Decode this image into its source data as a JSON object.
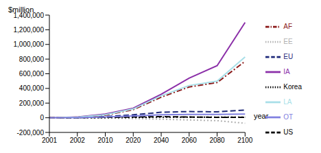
{
  "chart_data": {
    "type": "line",
    "x_label": "year",
    "y_label": "$million",
    "categories": [
      "2001",
      "2002",
      "2010",
      "2020",
      "2040",
      "2060",
      "2080",
      "2100"
    ],
    "ylim": [
      -200000,
      1400000
    ],
    "yticks": [
      {
        "value": -200000,
        "label": "-200,000"
      },
      0,
      {
        "value": 200000,
        "label": "200,000"
      },
      {
        "value": 400000,
        "label": "400,000"
      },
      {
        "value": 600000,
        "label": "600,000"
      },
      {
        "value": 800000,
        "label": "800,000"
      },
      {
        "value": 1000000,
        "label": "1,000,000"
      },
      {
        "value": 1200000,
        "label": "1,200,000"
      },
      {
        "value": 1400000,
        "label": "1,400,000"
      }
    ],
    "grid": false,
    "legend": "right",
    "series": [
      {
        "name": "EU",
        "color": "#1f2a7a",
        "line_style": "dashed",
        "values": [
          0,
          2000,
          15000,
          40000,
          75000,
          85000,
          80000,
          105000
        ]
      },
      {
        "name": "EE",
        "color": "#b0b0b0",
        "line_style": "dotted",
        "values": [
          0,
          0,
          -5000,
          -10000,
          -20000,
          -30000,
          -40000,
          -75000
        ]
      },
      {
        "name": "US",
        "color": "#000000",
        "line_style": "dashed",
        "values": [
          0,
          1000,
          5000,
          10000,
          15000,
          10000,
          5000,
          5000
        ]
      },
      {
        "name": "Korea",
        "color": "#000000",
        "line_style": "dotted",
        "values": [
          0,
          500,
          2000,
          5000,
          8000,
          8000,
          7000,
          8000
        ]
      },
      {
        "name": "IA",
        "color": "#8b2fa8",
        "line_style": "solid",
        "values": [
          0,
          10000,
          50000,
          130000,
          320000,
          540000,
          710000,
          1300000
        ]
      },
      {
        "name": "AF",
        "color": "#8b1a1a",
        "line_style": "dashdot",
        "values": [
          0,
          8000,
          35000,
          110000,
          280000,
          420000,
          480000,
          770000
        ]
      },
      {
        "name": "LA",
        "color": "#a8dfe8",
        "line_style": "solid",
        "values": [
          0,
          8000,
          40000,
          120000,
          300000,
          440000,
          500000,
          830000
        ]
      },
      {
        "name": "OT",
        "color": "#8080e0",
        "line_style": "solid",
        "values": [
          0,
          2000,
          10000,
          25000,
          40000,
          45000,
          45000,
          50000
        ]
      }
    ]
  }
}
